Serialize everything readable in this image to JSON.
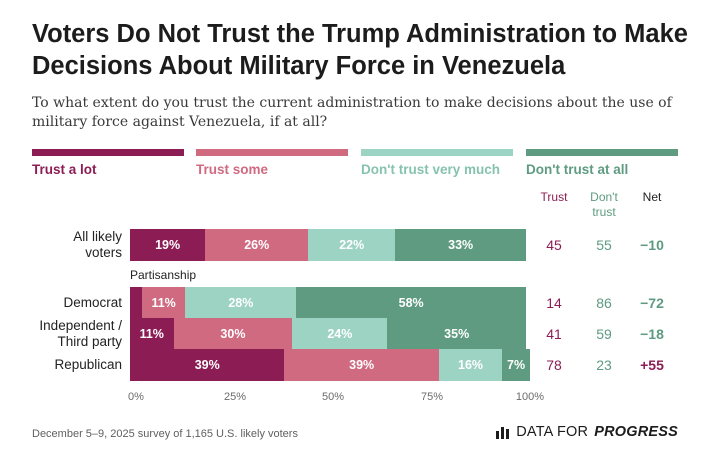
{
  "title": "Voters Do Not Trust the Trump Administration to Make Decisions About Military Force in Venezuela",
  "subtitle": "To what extent do you trust the current administration to make decisions about the use of military force against Venezuela, if at all?",
  "legend": [
    {
      "label": "Trust a lot",
      "color": "#8c1d54"
    },
    {
      "label": "Trust some",
      "color": "#cf6a80"
    },
    {
      "label": "Don't trust very much",
      "color": "#9dd3c2"
    },
    {
      "label": "Don't trust at all",
      "color": "#5e9b80"
    }
  ],
  "columns": {
    "trust": "Trust",
    "dont_trust": "Don't trust",
    "net": "Net"
  },
  "section_label": "Partisanship",
  "footer": "December 5–9, 2025 survey of 1,165 U.S. likely voters",
  "brand": {
    "prefix": "DATA FOR",
    "bold": "PROGRESS"
  },
  "chart_data": {
    "type": "bar",
    "orientation": "horizontal-stacked",
    "title": "Voters Do Not Trust the Trump Administration to Make Decisions About Military Force in Venezuela",
    "xlim": [
      0,
      100
    ],
    "x_ticks": [
      "0%",
      "25%",
      "50%",
      "75%",
      "100%"
    ],
    "series_names": [
      "Trust a lot",
      "Trust some",
      "Don't trust very much",
      "Don't trust at all"
    ],
    "colors": [
      "#8c1d54",
      "#cf6a80",
      "#9dd3c2",
      "#5e9b80"
    ],
    "rows": [
      {
        "label": "All likely voters",
        "lines": [
          "All likely",
          "voters"
        ],
        "values": [
          19,
          26,
          22,
          33
        ],
        "labels": [
          "19%",
          "26%",
          "22%",
          "33%"
        ],
        "trust": "45",
        "dont_trust": "55",
        "net": "−10",
        "net_color": "#5e9b80"
      },
      {
        "label": "Democrat",
        "lines": [
          "Democrat"
        ],
        "values": [
          3,
          11,
          28,
          58
        ],
        "labels": [
          "",
          "11%",
          "28%",
          "58%"
        ],
        "trust": "14",
        "dont_trust": "86",
        "net": "−72",
        "net_color": "#5e9b80"
      },
      {
        "label": "Independent / Third party",
        "lines": [
          "Independent /",
          "Third party"
        ],
        "values": [
          11,
          30,
          24,
          35
        ],
        "labels": [
          "11%",
          "30%",
          "24%",
          "35%"
        ],
        "trust": "41",
        "dont_trust": "59",
        "net": "−18",
        "net_color": "#5e9b80"
      },
      {
        "label": "Republican",
        "lines": [
          "Republican"
        ],
        "values": [
          39,
          39,
          16,
          7
        ],
        "labels": [
          "39%",
          "39%",
          "16%",
          "7%"
        ],
        "trust": "78",
        "dont_trust": "23",
        "net": "+55",
        "net_color": "#8c1d54"
      }
    ]
  }
}
